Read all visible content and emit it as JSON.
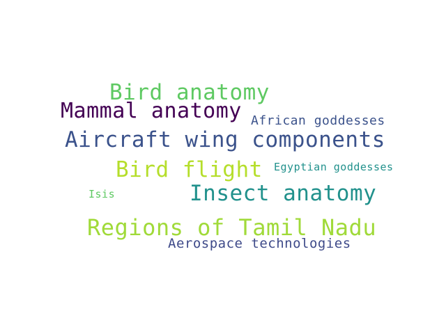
{
  "words": [
    {
      "text": "Bird anatomy",
      "color": "#5ec962"
    },
    {
      "text": "Mammal anatomy",
      "color": "#440154"
    },
    {
      "text": "African goddesses",
      "color": "#3b528b"
    },
    {
      "text": "Aircraft wing components",
      "color": "#3b528b"
    },
    {
      "text": "Bird flight",
      "color": "#b5de2b"
    },
    {
      "text": "Egyptian goddesses",
      "color": "#21918c"
    },
    {
      "text": "Isis",
      "color": "#5ec962"
    },
    {
      "text": "Insect anatomy",
      "color": "#21918c"
    },
    {
      "text": "Regions of Tamil Nadu",
      "color": "#a0da39"
    },
    {
      "text": "Aerospace technologies",
      "color": "#3e4a89"
    }
  ]
}
